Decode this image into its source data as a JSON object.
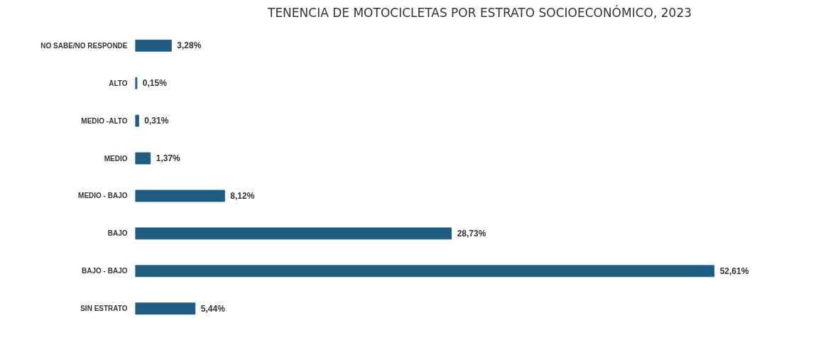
{
  "chart_data": {
    "type": "bar",
    "orientation": "horizontal",
    "title": "TENENCIA DE MOTOCICLETAS POR ESTRATO SOCIOECONÓMICO, 2023",
    "categories": [
      "NO SABE/NO RESPONDE",
      "ALTO",
      "MEDIO -ALTO",
      "MEDIO",
      "MEDIO - BAJO",
      "BAJO",
      "BAJO - BAJO",
      "SIN ESTRATO"
    ],
    "values": [
      3.28,
      0.15,
      0.31,
      1.37,
      8.12,
      28.73,
      52.61,
      5.44
    ],
    "value_labels": [
      "3,28%",
      "0,15%",
      "0,31%",
      "1,37%",
      "8,12%",
      "28,73%",
      "52,61%",
      "5,44%"
    ],
    "color": "#1f5c82",
    "grid": false
  }
}
